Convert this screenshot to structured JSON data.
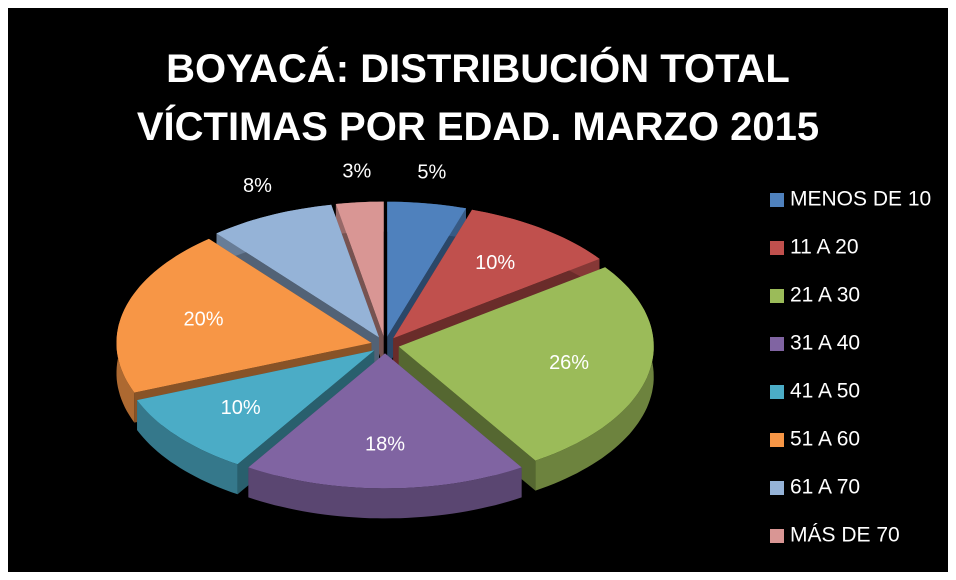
{
  "chart_data": {
    "type": "pie3d",
    "title": "BOYACÁ: DISTRIBUCIÓN TOTAL VÍCTIMAS POR EDAD. MARZO 2015",
    "categories": [
      "MENOS DE 10",
      "11 A 20",
      "21 A 30",
      "31 A 40",
      "41 A 50",
      "51 A 60",
      "61 A 70",
      "MÁS DE 70"
    ],
    "values": [
      5,
      10,
      26,
      18,
      10,
      20,
      8,
      3
    ],
    "value_labels": [
      "5%",
      "10%",
      "26%",
      "18%",
      "10%",
      "20%",
      "8%",
      "3%"
    ],
    "colors": [
      "#4f81bd",
      "#c0504d",
      "#9bbb59",
      "#8064a2",
      "#4bacc6",
      "#f79646",
      "#95b3d7",
      "#d99694"
    ],
    "legend": "right"
  }
}
